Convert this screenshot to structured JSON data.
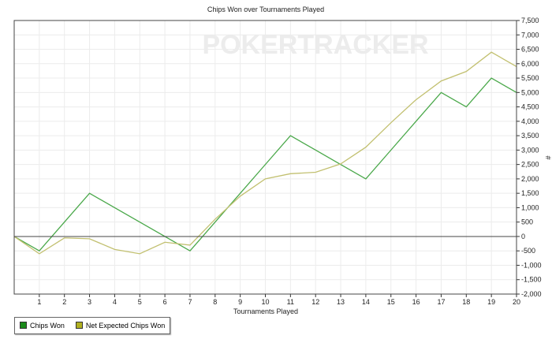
{
  "chart_data": {
    "type": "line",
    "title": "Chips Won over Tournaments Played",
    "xlabel": "Tournaments Played",
    "ylabel": "#",
    "watermark": "POKERTRACKER",
    "x": [
      0,
      1,
      2,
      3,
      4,
      5,
      6,
      7,
      8,
      9,
      10,
      11,
      12,
      13,
      14,
      15,
      16,
      17,
      18,
      19,
      20
    ],
    "xticks": [
      "1",
      "2",
      "3",
      "4",
      "5",
      "6",
      "7",
      "8",
      "9",
      "10",
      "11",
      "12",
      "13",
      "14",
      "15",
      "16",
      "17",
      "18",
      "19",
      "20"
    ],
    "xlim": [
      0,
      20
    ],
    "ylim": [
      -2000,
      7500
    ],
    "yticks": [
      "-2,000",
      "-1,500",
      "-1,000",
      "-500",
      "0",
      "500",
      "1,000",
      "1,500",
      "2,000",
      "2,500",
      "3,000",
      "3,500",
      "4,000",
      "4,500",
      "5,000",
      "5,500",
      "6,000",
      "6,500",
      "7,000",
      "7,500"
    ],
    "grid": true,
    "legend_position": "bottom-left",
    "series": [
      {
        "name": "Chips Won",
        "color": "#4aa84a",
        "legend_color": "#1a8a1a",
        "values": [
          0,
          -500,
          500,
          1500,
          1000,
          500,
          0,
          -500,
          500,
          1500,
          2500,
          3500,
          3000,
          2500,
          2000,
          3000,
          4000,
          5000,
          4500,
          5500,
          5000
        ]
      },
      {
        "name": "Net Expected Chips Won",
        "color": "#c2c070",
        "legend_color": "#b0b020",
        "values": [
          0,
          -600,
          -50,
          -80,
          -450,
          -600,
          -200,
          -300,
          600,
          1400,
          2000,
          2180,
          2230,
          2520,
          3100,
          3950,
          4750,
          5400,
          5730,
          6400,
          5900
        ]
      }
    ]
  }
}
